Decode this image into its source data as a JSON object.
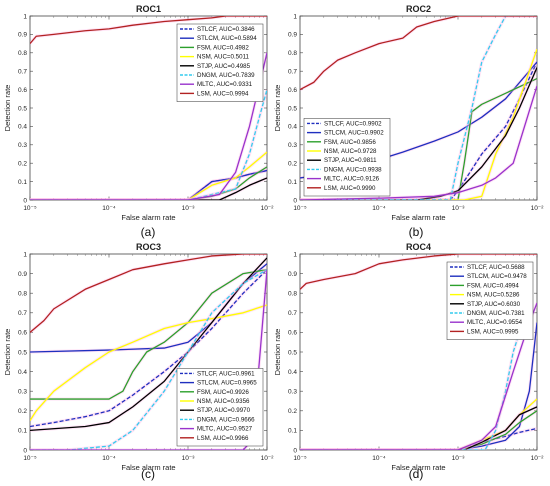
{
  "chart_data": [
    {
      "type": "line",
      "title": "ROC1",
      "caption": "(a)",
      "xlabel": "False alarm rate",
      "ylabel": "Detection rate",
      "xscale": "log",
      "xlim": [
        1e-05,
        0.01
      ],
      "ylim": [
        0,
        1
      ],
      "xticks": [
        "10⁻⁵",
        "10⁻⁴",
        "10⁻³",
        "10⁻²"
      ],
      "yticks": [
        "0",
        "0.1",
        "0.2",
        "0.3",
        "0.4",
        "0.5",
        "0.6",
        "0.7",
        "0.8",
        "0.9",
        "1"
      ],
      "legend_position": "top-right",
      "series": [
        {
          "name": "STLCF, AUC=0.3846",
          "color": "#1f2fbf",
          "dash": "dashed",
          "x": [
            1e-05,
            0.001,
            0.002,
            0.004,
            0.006,
            0.01
          ],
          "y": [
            0,
            0,
            0.1,
            0.12,
            0.14,
            0.16
          ]
        },
        {
          "name": "STLCM, AUC=0.5894",
          "color": "#1f2fbf",
          "dash": "solid",
          "x": [
            1e-05,
            0.001,
            0.002,
            0.004,
            0.006,
            0.01
          ],
          "y": [
            0,
            0,
            0.1,
            0.12,
            0.14,
            0.16
          ]
        },
        {
          "name": "FSM, AUC=0.4982",
          "color": "#2ca02c",
          "dash": "solid",
          "x": [
            1e-05,
            0.001,
            0.002,
            0.004,
            0.006,
            0.01
          ],
          "y": [
            0,
            0,
            0.02,
            0.06,
            0.12,
            0.18
          ]
        },
        {
          "name": "NSM, AUC=0.5011",
          "color": "#ffff00",
          "dash": "solid",
          "x": [
            1e-05,
            0.001,
            0.002,
            0.004,
            0.006,
            0.01
          ],
          "y": [
            0,
            0,
            0.08,
            0.12,
            0.18,
            0.26
          ]
        },
        {
          "name": "STJP, AUC=0.4985",
          "color": "#000000",
          "dash": "solid",
          "x": [
            1e-05,
            0.001,
            0.0025,
            0.004,
            0.006,
            0.01
          ],
          "y": [
            0,
            0,
            0,
            0.04,
            0.08,
            0.12
          ]
        },
        {
          "name": "DNGM, AUC=0.7839",
          "color": "#33ccee",
          "dash": "dashed",
          "x": [
            1e-05,
            0.001,
            0.004,
            0.006,
            0.008,
            0.01
          ],
          "y": [
            0,
            0,
            0.06,
            0.25,
            0.45,
            0.6
          ]
        },
        {
          "name": "MLTC, AUC=0.9331",
          "color": "#9933cc",
          "dash": "solid",
          "x": [
            1e-05,
            0.001,
            0.0025,
            0.004,
            0.006,
            0.01
          ],
          "y": [
            0,
            0,
            0.03,
            0.15,
            0.4,
            0.8
          ]
        },
        {
          "name": "LSM, AUC=0.9994",
          "color": "#b22222",
          "dash": "solid",
          "x": [
            1e-05,
            1.2e-05,
            2e-05,
            5e-05,
            0.0001,
            0.0002,
            0.0005,
            0.001,
            0.002,
            0.003,
            0.005,
            0.01
          ],
          "y": [
            0.85,
            0.89,
            0.9,
            0.92,
            0.93,
            0.95,
            0.97,
            0.98,
            0.99,
            1,
            1,
            1
          ]
        }
      ]
    },
    {
      "type": "line",
      "title": "ROC2",
      "caption": "(b)",
      "xlabel": "False alarm rate",
      "ylabel": "Detection rate",
      "xscale": "log",
      "xlim": [
        1e-05,
        0.01
      ],
      "ylim": [
        0,
        1
      ],
      "xticks": [
        "10⁻⁵",
        "10⁻⁴",
        "10⁻³",
        "10⁻²"
      ],
      "yticks": [
        "0",
        "0.1",
        "0.2",
        "0.3",
        "0.4",
        "0.5",
        "0.6",
        "0.7",
        "0.8",
        "0.9",
        "1"
      ],
      "legend_position": "bottom-left",
      "series": [
        {
          "name": "STLCF, AUC=0.9902",
          "color": "#1f2fbf",
          "dash": "dashed",
          "x": [
            1e-05,
            0.0008,
            0.001,
            0.002,
            0.004,
            0.006,
            0.01
          ],
          "y": [
            0,
            0,
            0.05,
            0.25,
            0.4,
            0.55,
            0.75
          ]
        },
        {
          "name": "STLCM, AUC=0.9902",
          "color": "#1f2fbf",
          "dash": "solid",
          "x": [
            1e-05,
            1.5e-05,
            2e-05,
            5e-05,
            0.0001,
            0.0002,
            0.0005,
            0.001,
            0.002,
            0.004,
            0.01
          ],
          "y": [
            0.12,
            0.13,
            0.14,
            0.18,
            0.22,
            0.26,
            0.32,
            0.37,
            0.45,
            0.55,
            0.75
          ]
        },
        {
          "name": "FSM, AUC=0.9856",
          "color": "#2ca02c",
          "dash": "solid",
          "x": [
            1e-05,
            0.001,
            0.0012,
            0.0015,
            0.002,
            0.004,
            0.01
          ],
          "y": [
            0,
            0,
            0.2,
            0.48,
            0.52,
            0.58,
            0.66
          ]
        },
        {
          "name": "NSM, AUC=0.9728",
          "color": "#ffff00",
          "dash": "solid",
          "x": [
            1e-05,
            0.0012,
            0.002,
            0.003,
            0.005,
            0.008,
            0.01
          ],
          "y": [
            0,
            0,
            0.02,
            0.25,
            0.45,
            0.7,
            0.82
          ]
        },
        {
          "name": "STJP, AUC=0.9811",
          "color": "#000000",
          "dash": "solid",
          "x": [
            1e-05,
            0.0003,
            0.0006,
            0.001,
            0.002,
            0.004,
            0.006,
            0.01
          ],
          "y": [
            0,
            0,
            0.02,
            0.05,
            0.18,
            0.35,
            0.5,
            0.72
          ]
        },
        {
          "name": "DNGM, AUC=0.9938",
          "color": "#33ccee",
          "dash": "dashed",
          "x": [
            1e-05,
            0.0008,
            0.001,
            0.0015,
            0.002,
            0.003,
            0.004,
            0.01
          ],
          "y": [
            0,
            0,
            0.2,
            0.5,
            0.75,
            0.9,
            1,
            1
          ]
        },
        {
          "name": "MLTC, AUC=0.9126",
          "color": "#9933cc",
          "dash": "solid",
          "x": [
            1e-05,
            0.0001,
            0.0005,
            0.001,
            0.002,
            0.003,
            0.005,
            0.01
          ],
          "y": [
            0,
            0.01,
            0.02,
            0.04,
            0.08,
            0.12,
            0.2,
            0.62
          ]
        },
        {
          "name": "LSM, AUC=0.9990",
          "color": "#b22222",
          "dash": "solid",
          "x": [
            1e-05,
            1.5e-05,
            2e-05,
            3e-05,
            5e-05,
            0.0001,
            0.0002,
            0.0003,
            0.0005,
            0.001,
            0.002,
            0.01
          ],
          "y": [
            0.6,
            0.64,
            0.7,
            0.76,
            0.8,
            0.85,
            0.88,
            0.94,
            0.97,
            1,
            1,
            1
          ]
        }
      ]
    },
    {
      "type": "line",
      "title": "ROC3",
      "caption": "(c)",
      "xlabel": "False alarm rate",
      "ylabel": "Detection rate",
      "xscale": "log",
      "xlim": [
        1e-05,
        0.01
      ],
      "ylim": [
        0,
        1
      ],
      "xticks": [
        "10⁻⁵",
        "10⁻⁴",
        "10⁻³",
        "10⁻²"
      ],
      "yticks": [
        "0",
        "0.1",
        "0.2",
        "0.3",
        "0.4",
        "0.5",
        "0.6",
        "0.7",
        "0.8",
        "0.9",
        "1"
      ],
      "legend_position": "bottom-right",
      "series": [
        {
          "name": "STLCF, AUC=0.9961",
          "color": "#1f2fbf",
          "dash": "dashed",
          "x": [
            1e-05,
            2e-05,
            5e-05,
            0.0001,
            0.0002,
            0.0005,
            0.001,
            0.002,
            0.005,
            0.01
          ],
          "y": [
            0.12,
            0.14,
            0.17,
            0.2,
            0.28,
            0.4,
            0.5,
            0.62,
            0.8,
            0.92
          ]
        },
        {
          "name": "STLCM, AUC=0.9965",
          "color": "#1f2fbf",
          "dash": "solid",
          "x": [
            1e-05,
            0.0001,
            0.0005,
            0.001,
            0.002,
            0.005,
            0.01
          ],
          "y": [
            0.5,
            0.51,
            0.52,
            0.55,
            0.65,
            0.85,
            0.95
          ]
        },
        {
          "name": "FSM, AUC=0.9926",
          "color": "#2ca02c",
          "dash": "solid",
          "x": [
            1e-05,
            5e-05,
            0.0001,
            0.00015,
            0.0002,
            0.0003,
            0.0005,
            0.001,
            0.002,
            0.005,
            0.01
          ],
          "y": [
            0.26,
            0.26,
            0.26,
            0.3,
            0.4,
            0.5,
            0.55,
            0.65,
            0.8,
            0.9,
            0.92
          ]
        },
        {
          "name": "NSM, AUC=0.9356",
          "color": "#ffff00",
          "dash": "solid",
          "x": [
            1e-05,
            1.2e-05,
            2e-05,
            5e-05,
            0.0001,
            0.0002,
            0.0005,
            0.001,
            0.002,
            0.005,
            0.01
          ],
          "y": [
            0.15,
            0.2,
            0.3,
            0.42,
            0.5,
            0.55,
            0.62,
            0.65,
            0.67,
            0.7,
            0.74
          ]
        },
        {
          "name": "STJP, AUC=0.9970",
          "color": "#000000",
          "dash": "solid",
          "x": [
            1e-05,
            5e-05,
            0.0001,
            0.0002,
            0.0005,
            0.001,
            0.002,
            0.005,
            0.01
          ],
          "y": [
            0.1,
            0.12,
            0.14,
            0.22,
            0.35,
            0.5,
            0.65,
            0.85,
            0.98
          ]
        },
        {
          "name": "DNGM, AUC=0.9666",
          "color": "#33ccee",
          "dash": "dashed",
          "x": [
            1e-05,
            3e-05,
            0.0001,
            0.0002,
            0.0005,
            0.001,
            0.002,
            0.005,
            0.01
          ],
          "y": [
            0,
            0,
            0.02,
            0.1,
            0.3,
            0.5,
            0.7,
            0.85,
            0.92
          ]
        },
        {
          "name": "MLTC, AUC=0.9527",
          "color": "#9933cc",
          "dash": "solid",
          "x": [
            1e-05,
            0.005,
            0.0065,
            0.008,
            0.01
          ],
          "y": [
            0,
            0,
            0.05,
            0.45,
            0.92
          ]
        },
        {
          "name": "LSM, AUC=0.9966",
          "color": "#b22222",
          "dash": "solid",
          "x": [
            1e-05,
            1.5e-05,
            2e-05,
            5e-05,
            0.0001,
            0.0002,
            0.0005,
            0.001,
            0.002,
            0.005,
            0.01
          ],
          "y": [
            0.6,
            0.66,
            0.72,
            0.82,
            0.87,
            0.92,
            0.95,
            0.97,
            0.99,
            1,
            1
          ]
        }
      ]
    },
    {
      "type": "line",
      "title": "ROC4",
      "caption": "(d)",
      "xlabel": "False alarm rate",
      "ylabel": "Detection rate",
      "xscale": "log",
      "xlim": [
        1e-05,
        0.01
      ],
      "ylim": [
        0,
        1
      ],
      "xticks": [
        "10⁻⁵",
        "10⁻⁴",
        "10⁻³",
        "10⁻²"
      ],
      "yticks": [
        "0",
        "0.1",
        "0.2",
        "0.3",
        "0.4",
        "0.5",
        "0.6",
        "0.7",
        "0.8",
        "0.9",
        "1"
      ],
      "legend_position": "top-right",
      "series": [
        {
          "name": "STLCF, AUC=0.5688",
          "color": "#1f2fbf",
          "dash": "dashed",
          "x": [
            1e-05,
            0.001,
            0.002,
            0.004,
            0.006,
            0.01
          ],
          "y": [
            0,
            0,
            0.04,
            0.07,
            0.09,
            0.11
          ]
        },
        {
          "name": "STLCM, AUC=0.9478",
          "color": "#1f2fbf",
          "dash": "solid",
          "x": [
            1e-05,
            0.001,
            0.002,
            0.004,
            0.006,
            0.008,
            0.01
          ],
          "y": [
            0,
            0,
            0.02,
            0.05,
            0.12,
            0.3,
            0.65
          ]
        },
        {
          "name": "FSM, AUC=0.4994",
          "color": "#2ca02c",
          "dash": "solid",
          "x": [
            1e-05,
            0.001,
            0.002,
            0.004,
            0.006,
            0.01
          ],
          "y": [
            0,
            0,
            0.03,
            0.08,
            0.14,
            0.2
          ]
        },
        {
          "name": "NSM, AUC=0.5286",
          "color": "#ffff00",
          "dash": "solid",
          "x": [
            1e-05,
            0.001,
            0.002,
            0.004,
            0.006,
            0.01
          ],
          "y": [
            0,
            0,
            0.05,
            0.1,
            0.18,
            0.26
          ]
        },
        {
          "name": "STJP, AUC=0.6030",
          "color": "#000000",
          "dash": "solid",
          "x": [
            1e-05,
            0.0012,
            0.002,
            0.004,
            0.006,
            0.01
          ],
          "y": [
            0,
            0,
            0.04,
            0.1,
            0.18,
            0.22
          ]
        },
        {
          "name": "DNGM, AUC=0.7381",
          "color": "#33ccee",
          "dash": "dashed",
          "x": [
            1e-05,
            0.0022,
            0.003,
            0.004,
            0.005,
            0.006
          ],
          "y": [
            0,
            0,
            0.1,
            0.3,
            0.5,
            0.6
          ]
        },
        {
          "name": "MLTC, AUC=0.9554",
          "color": "#9933cc",
          "dash": "solid",
          "x": [
            1e-05,
            0.001,
            0.002,
            0.003,
            0.005,
            0.008,
            0.01
          ],
          "y": [
            0,
            0,
            0.05,
            0.12,
            0.4,
            0.65,
            0.75
          ]
        },
        {
          "name": "LSM, AUC=0.9995",
          "color": "#b22222",
          "dash": "solid",
          "x": [
            1e-05,
            1.2e-05,
            2e-05,
            5e-05,
            0.0001,
            0.0002,
            0.0005,
            0.001,
            0.003,
            0.01
          ],
          "y": [
            0.82,
            0.85,
            0.87,
            0.9,
            0.95,
            0.97,
            0.99,
            1,
            1,
            1
          ]
        }
      ]
    }
  ]
}
